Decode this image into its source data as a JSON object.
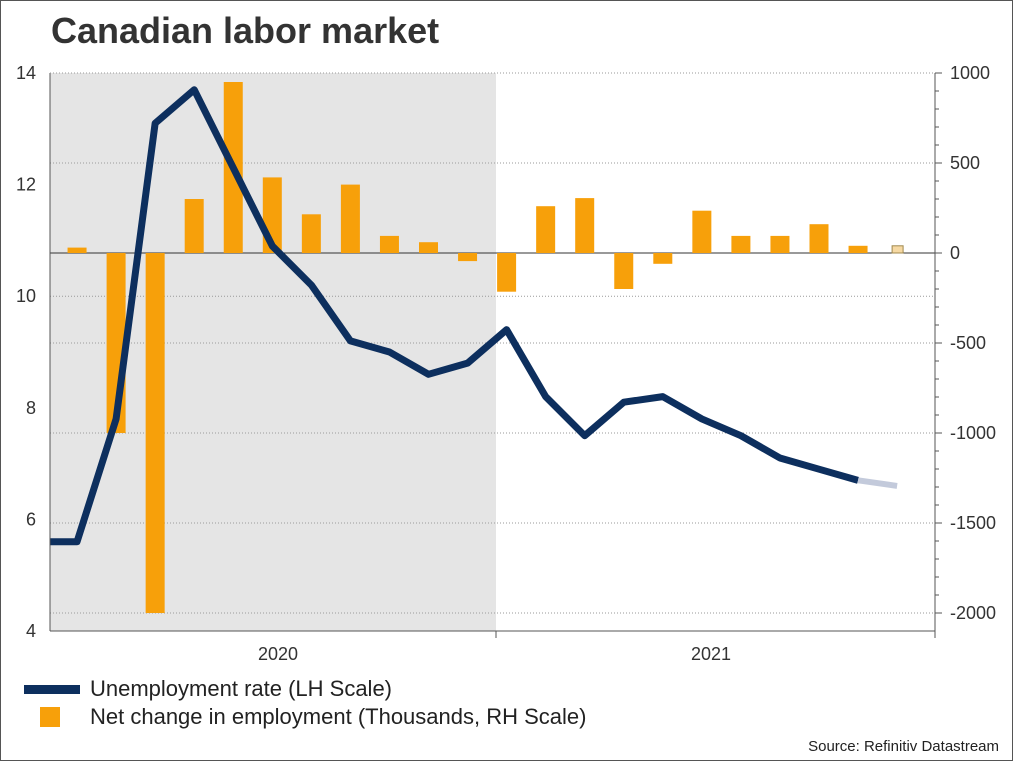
{
  "chart_data": {
    "type": "combo",
    "title": "Canadian labor market",
    "x_period_labels": [
      "2020",
      "2021"
    ],
    "shaded_period": "2020",
    "left_axis": {
      "label": "Unemployment rate (LH Scale)",
      "ylim": [
        4,
        14
      ],
      "ticks": [
        "4",
        "6",
        "8",
        "10",
        "12",
        "14"
      ]
    },
    "right_axis": {
      "label": "Net change in employment (Thousands, RH Scale)",
      "ylim": [
        -2100,
        1000
      ],
      "ticks": [
        "1000",
        "500",
        "0",
        "-500",
        "-1000",
        "-1500",
        "-2000"
      ]
    },
    "series": [
      {
        "name": "Unemployment rate (LH Scale)",
        "type": "line",
        "axis": "left",
        "color": "#0d2f5e",
        "x": [
          0,
          1,
          2,
          3,
          4,
          5,
          6,
          7,
          8,
          9,
          10,
          11,
          12,
          13,
          14,
          15,
          16,
          17,
          18,
          19,
          20,
          21
        ],
        "values": [
          5.6,
          5.6,
          7.8,
          13.1,
          13.7,
          12.3,
          10.9,
          10.2,
          9.2,
          9.0,
          8.6,
          8.8,
          9.4,
          8.2,
          7.5,
          8.1,
          8.2,
          7.8,
          7.5,
          7.1,
          6.9,
          6.7
        ],
        "estimate": {
          "color": "#c3cadb",
          "x": [
            21,
            22
          ],
          "values": [
            6.7,
            6.6
          ]
        }
      },
      {
        "name": "Net change in employment (Thousands, RH Scale)",
        "type": "bar",
        "axis": "right",
        "color": "#f7a00a",
        "x": [
          1,
          2,
          3,
          4,
          5,
          6,
          7,
          8,
          9,
          10,
          11,
          12,
          13,
          14,
          15,
          16,
          17,
          18,
          19,
          20,
          21,
          22
        ],
        "values": [
          30,
          -1000,
          -2000,
          300,
          950,
          420,
          215,
          380,
          95,
          60,
          -45,
          -215,
          260,
          305,
          -200,
          -60,
          235,
          95,
          95,
          160,
          40,
          40
        ],
        "highlight_last": {
          "color": "#f6d9a3",
          "stroke": "#a0884d"
        }
      }
    ]
  },
  "legend": {
    "line_label": "Unemployment rate (LH Scale)",
    "bar_label": "Net change in employment (Thousands, RH Scale)"
  },
  "source": "Source: Refinitiv Datastream"
}
